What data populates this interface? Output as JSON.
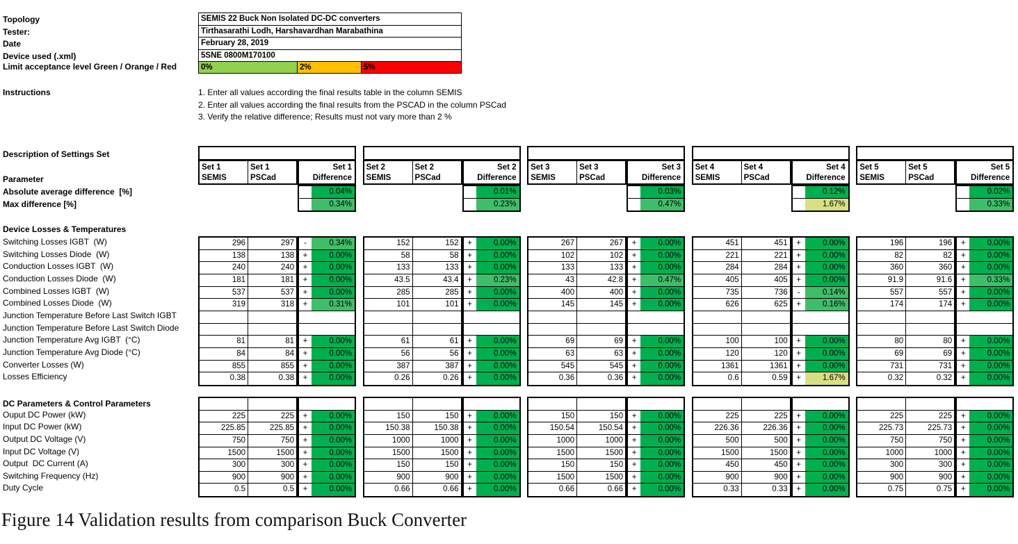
{
  "caption": "Figure 14 Validation results from comparison Buck Converter",
  "colors": {
    "green_dark": "#00B050",
    "green_mid": "#3FBE69",
    "green_warn": "#D7DF81",
    "bar_green": "#92D050",
    "bar_orange": "#FFC000",
    "bar_red": "#FF0000"
  },
  "info": {
    "rows": [
      {
        "label": "Topology",
        "value": "SEMIS 22 Buck Non Isolated DC-DC converters"
      },
      {
        "label": "Tester:",
        "value": "Tirthasarathi Lodh, Harshavardhan Marabathina"
      },
      {
        "label": "Date",
        "value": "February 28, 2019"
      },
      {
        "label": "Device used (.xml)",
        "value": "5SNE 0800M170100"
      }
    ],
    "limit_label": "Limit acceptance level Green / Orange / Red",
    "limits": [
      {
        "text": "0%",
        "color_key": "bar_green"
      },
      {
        "text": "2%",
        "color_key": "bar_orange"
      },
      {
        "text": "5%",
        "color_key": "bar_red"
      }
    ]
  },
  "instructions": {
    "label": "Instructions",
    "items": [
      "1. Enter all values according the final results table in the column SEMIS",
      "2. Enter all values according the final results from the PSCAD in the column PSCad",
      "3. Verify the relative difference; Results must not vary more than 2 %"
    ]
  },
  "settings_header": {
    "description_label": "Description of Settings Set",
    "parameter_label": "Parameter",
    "abs_avg_label": "Absolute average difference  [%]",
    "max_label": "Max difference [%]",
    "semis": "SEMIS",
    "pscad": "PSCad",
    "difference": "Difference"
  },
  "sets": [
    {
      "name": "Set 1",
      "abs_avg": {
        "pct": "0.04%",
        "level": "dark"
      },
      "max": {
        "pct": "0.34%",
        "level": "mid"
      }
    },
    {
      "name": "Set 2",
      "abs_avg": {
        "pct": "0.01%",
        "level": "dark"
      },
      "max": {
        "pct": "0.23%",
        "level": "mid"
      }
    },
    {
      "name": "Set 3",
      "abs_avg": {
        "pct": "0.03%",
        "level": "dark"
      },
      "max": {
        "pct": "0.47%",
        "level": "mid"
      }
    },
    {
      "name": "Set 4",
      "abs_avg": {
        "pct": "0.12%",
        "level": "dark"
      },
      "max": {
        "pct": "1.67%",
        "level": "warn"
      }
    },
    {
      "name": "Set 5",
      "abs_avg": {
        "pct": "0.02%",
        "level": "dark"
      },
      "max": {
        "pct": "0.33%",
        "level": "mid"
      }
    }
  ],
  "sections": [
    {
      "title": "Device Losses & Temperatures",
      "top_empty_row": false,
      "rows": [
        {
          "label": "Switching Losses IGBT  (W)",
          "cells": [
            [
              "296",
              "297",
              "-",
              "0.34%",
              "mid"
            ],
            [
              "152",
              "152",
              "+",
              "0.00%",
              "dark"
            ],
            [
              "267",
              "267",
              "+",
              "0.00%",
              "dark"
            ],
            [
              "451",
              "451",
              "+",
              "0.00%",
              "dark"
            ],
            [
              "196",
              "196",
              "+",
              "0.00%",
              "dark"
            ]
          ]
        },
        {
          "label": "Switching Losses Diode  (W)",
          "cells": [
            [
              "138",
              "138",
              "+",
              "0.00%",
              "dark"
            ],
            [
              "58",
              "58",
              "+",
              "0.00%",
              "dark"
            ],
            [
              "102",
              "102",
              "+",
              "0.00%",
              "dark"
            ],
            [
              "221",
              "221",
              "+",
              "0.00%",
              "dark"
            ],
            [
              "82",
              "82",
              "+",
              "0.00%",
              "dark"
            ]
          ]
        },
        {
          "label": "Conduction Losses IGBT  (W)",
          "cells": [
            [
              "240",
              "240",
              "+",
              "0.00%",
              "dark"
            ],
            [
              "133",
              "133",
              "+",
              "0.00%",
              "dark"
            ],
            [
              "133",
              "133",
              "+",
              "0.00%",
              "dark"
            ],
            [
              "284",
              "284",
              "+",
              "0.00%",
              "dark"
            ],
            [
              "360",
              "360",
              "+",
              "0.00%",
              "dark"
            ]
          ]
        },
        {
          "label": "Conduction Losses Diode  (W)",
          "cells": [
            [
              "181",
              "181",
              "+",
              "0.00%",
              "dark"
            ],
            [
              "43.5",
              "43.4",
              "+",
              "0.23%",
              "mid"
            ],
            [
              "43",
              "42.8",
              "+",
              "0.47%",
              "mid"
            ],
            [
              "405",
              "405",
              "+",
              "0.00%",
              "dark"
            ],
            [
              "91.9",
              "91.6",
              "+",
              "0.33%",
              "mid"
            ]
          ]
        },
        {
          "label": "Combined Losses IGBT  (W)",
          "cells": [
            [
              "537",
              "537",
              "+",
              "0.00%",
              "dark"
            ],
            [
              "285",
              "285",
              "+",
              "0.00%",
              "dark"
            ],
            [
              "400",
              "400",
              "+",
              "0.00%",
              "dark"
            ],
            [
              "735",
              "736",
              "-",
              "0.14%",
              "mid"
            ],
            [
              "557",
              "557",
              "+",
              "0.00%",
              "dark"
            ]
          ]
        },
        {
          "label": "Combined Losses Diode  (W)",
          "cells": [
            [
              "319",
              "318",
              "+",
              "0.31%",
              "mid"
            ],
            [
              "101",
              "101",
              "+",
              "0.00%",
              "dark"
            ],
            [
              "145",
              "145",
              "+",
              "0.00%",
              "dark"
            ],
            [
              "626",
              "625",
              "+",
              "0.16%",
              "mid"
            ],
            [
              "174",
              "174",
              "+",
              "0.00%",
              "dark"
            ]
          ]
        },
        {
          "label": "Junction Temperature Before Last Switch IGBT",
          "cells": [
            [
              "",
              "",
              "",
              "",
              ""
            ],
            [
              "",
              "",
              "",
              "",
              ""
            ],
            [
              "",
              "",
              "",
              "",
              ""
            ],
            [
              "",
              "",
              "",
              "",
              ""
            ],
            [
              "",
              "",
              "",
              "",
              ""
            ]
          ]
        },
        {
          "label": "Junction Temperature Before Last Switch Diode",
          "cells": [
            [
              "",
              "",
              "",
              "",
              ""
            ],
            [
              "",
              "",
              "",
              "",
              ""
            ],
            [
              "",
              "",
              "",
              "",
              ""
            ],
            [
              "",
              "",
              "",
              "",
              ""
            ],
            [
              "",
              "",
              "",
              "",
              ""
            ]
          ]
        },
        {
          "label": "Junction Temperature Avg IGBT  (°C)",
          "cells": [
            [
              "81",
              "81",
              "+",
              "0.00%",
              "dark"
            ],
            [
              "61",
              "61",
              "+",
              "0.00%",
              "dark"
            ],
            [
              "69",
              "69",
              "+",
              "0.00%",
              "dark"
            ],
            [
              "100",
              "100",
              "+",
              "0.00%",
              "dark"
            ],
            [
              "80",
              "80",
              "+",
              "0.00%",
              "dark"
            ]
          ]
        },
        {
          "label": "Junction Temperature Avg Diode (°C)",
          "cells": [
            [
              "84",
              "84",
              "+",
              "0.00%",
              "dark"
            ],
            [
              "56",
              "56",
              "+",
              "0.00%",
              "dark"
            ],
            [
              "63",
              "63",
              "+",
              "0.00%",
              "dark"
            ],
            [
              "120",
              "120",
              "+",
              "0.00%",
              "dark"
            ],
            [
              "69",
              "69",
              "+",
              "0.00%",
              "dark"
            ]
          ]
        },
        {
          "label": "Converter Losses (W)",
          "cells": [
            [
              "855",
              "855",
              "+",
              "0.00%",
              "dark"
            ],
            [
              "387",
              "387",
              "+",
              "0.00%",
              "dark"
            ],
            [
              "545",
              "545",
              "+",
              "0.00%",
              "dark"
            ],
            [
              "1361",
              "1361",
              "+",
              "0.00%",
              "dark"
            ],
            [
              "731",
              "731",
              "+",
              "0.00%",
              "dark"
            ]
          ]
        },
        {
          "label": "Losses Efficiency",
          "cells": [
            [
              "0.38",
              "0.38",
              "+",
              "0.00%",
              "dark"
            ],
            [
              "0.26",
              "0.26",
              "+",
              "0.00%",
              "dark"
            ],
            [
              "0.36",
              "0.36",
              "+",
              "0.00%",
              "dark"
            ],
            [
              "0.6",
              "0.59",
              "+",
              "1.67%",
              "warn"
            ],
            [
              "0.32",
              "0.32",
              "+",
              "0.00%",
              "dark"
            ]
          ]
        }
      ]
    },
    {
      "title": "DC Parameters & Control Parameters",
      "top_empty_row": true,
      "rows": [
        {
          "label": "",
          "cells": [
            [
              "",
              "",
              "",
              "",
              ""
            ],
            [
              "",
              "",
              "",
              "",
              ""
            ],
            [
              "",
              "",
              "",
              "",
              ""
            ],
            [
              "",
              "",
              "",
              "",
              ""
            ],
            [
              "",
              "",
              "",
              "",
              ""
            ]
          ]
        },
        {
          "label": "Ouput DC Power (kW)",
          "cells": [
            [
              "225",
              "225",
              "+",
              "0.00%",
              "dark"
            ],
            [
              "150",
              "150",
              "+",
              "0.00%",
              "dark"
            ],
            [
              "150",
              "150",
              "+",
              "0.00%",
              "dark"
            ],
            [
              "225",
              "225",
              "+",
              "0.00%",
              "dark"
            ],
            [
              "225",
              "225",
              "+",
              "0.00%",
              "dark"
            ]
          ]
        },
        {
          "label": "Input DC Power (kW)",
          "cells": [
            [
              "225.85",
              "225.85",
              "+",
              "0.00%",
              "dark"
            ],
            [
              "150.38",
              "150.38",
              "+",
              "0.00%",
              "dark"
            ],
            [
              "150.54",
              "150.54",
              "+",
              "0.00%",
              "dark"
            ],
            [
              "226.36",
              "226.36",
              "+",
              "0.00%",
              "dark"
            ],
            [
              "225.73",
              "225.73",
              "+",
              "0.00%",
              "dark"
            ]
          ]
        },
        {
          "label": "Output DC Voltage (V)",
          "cells": [
            [
              "750",
              "750",
              "+",
              "0.00%",
              "dark"
            ],
            [
              "1000",
              "1000",
              "+",
              "0.00%",
              "dark"
            ],
            [
              "1000",
              "1000",
              "+",
              "0.00%",
              "dark"
            ],
            [
              "500",
              "500",
              "+",
              "0.00%",
              "dark"
            ],
            [
              "750",
              "750",
              "+",
              "0.00%",
              "dark"
            ]
          ]
        },
        {
          "label": "Input DC Voltage (V)",
          "cells": [
            [
              "1500",
              "1500",
              "+",
              "0.00%",
              "dark"
            ],
            [
              "1500",
              "1500",
              "+",
              "0.00%",
              "dark"
            ],
            [
              "1500",
              "1500",
              "+",
              "0.00%",
              "dark"
            ],
            [
              "1500",
              "1500",
              "+",
              "0.00%",
              "dark"
            ],
            [
              "1000",
              "1000",
              "+",
              "0.00%",
              "dark"
            ]
          ]
        },
        {
          "label": "Output  DC Current (A)",
          "cells": [
            [
              "300",
              "300",
              "+",
              "0.00%",
              "dark"
            ],
            [
              "150",
              "150",
              "+",
              "0.00%",
              "dark"
            ],
            [
              "150",
              "150",
              "+",
              "0.00%",
              "dark"
            ],
            [
              "450",
              "450",
              "+",
              "0.00%",
              "dark"
            ],
            [
              "300",
              "300",
              "+",
              "0.00%",
              "dark"
            ]
          ]
        },
        {
          "label": "Switching Frequency (Hz)",
          "cells": [
            [
              "900",
              "900",
              "+",
              "0.00%",
              "dark"
            ],
            [
              "900",
              "900",
              "+",
              "0.00%",
              "dark"
            ],
            [
              "1500",
              "1500",
              "+",
              "0.00%",
              "dark"
            ],
            [
              "900",
              "900",
              "+",
              "0.00%",
              "dark"
            ],
            [
              "900",
              "900",
              "+",
              "0.00%",
              "dark"
            ]
          ]
        },
        {
          "label": "Duty Cycle",
          "cells": [
            [
              "0.5",
              "0.5",
              "+",
              "0.00%",
              "dark"
            ],
            [
              "0.66",
              "0.66",
              "+",
              "0.00%",
              "dark"
            ],
            [
              "0.66",
              "0.66",
              "+",
              "0.00%",
              "dark"
            ],
            [
              "0.33",
              "0.33",
              "+",
              "0.00%",
              "dark"
            ],
            [
              "0.75",
              "0.75",
              "+",
              "0.00%",
              "dark"
            ]
          ]
        }
      ]
    }
  ]
}
